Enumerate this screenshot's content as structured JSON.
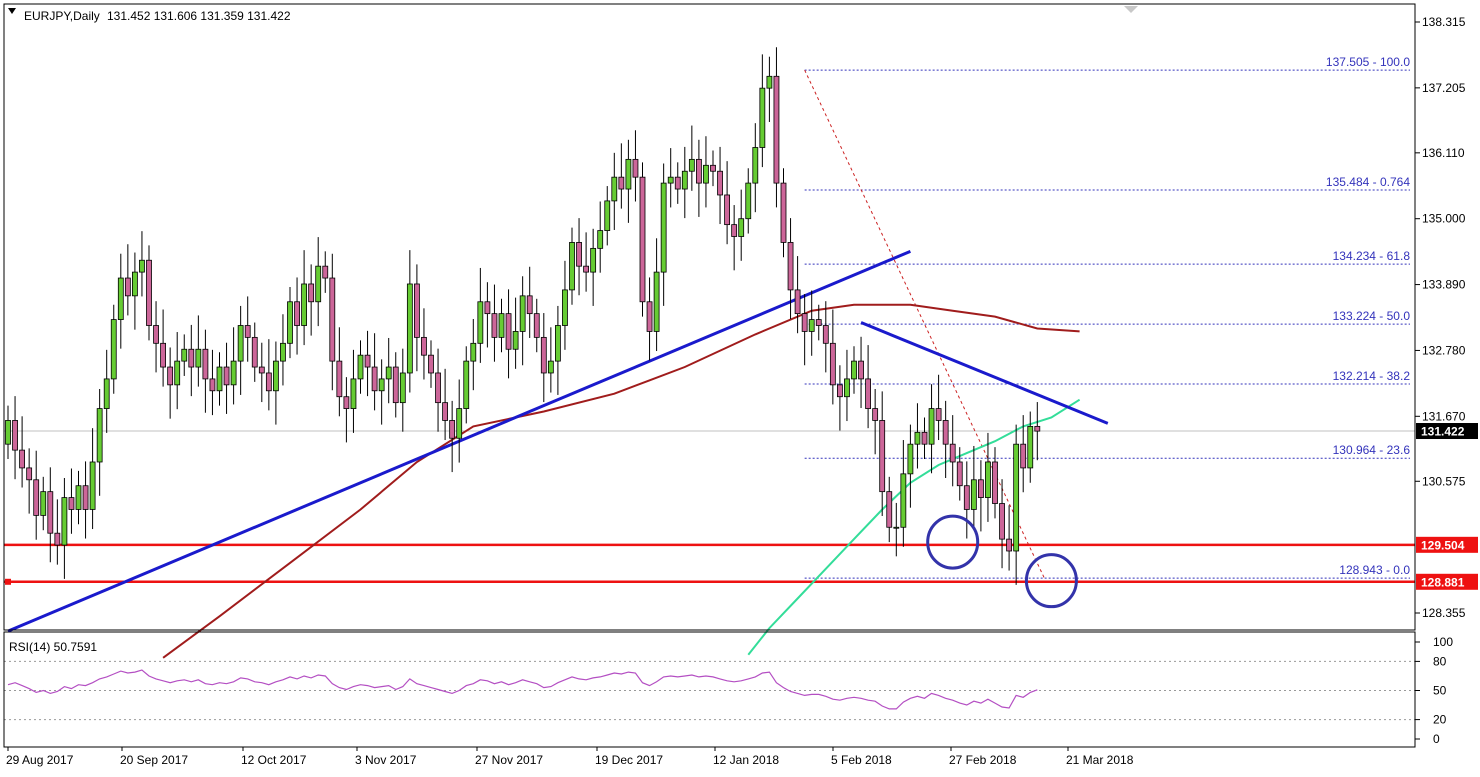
{
  "header": {
    "symbol": "EURJPY,Daily",
    "ohlc": "131.452 131.606 131.359 131.422"
  },
  "rsi": {
    "label": "RSI(14) 50.7591",
    "ticks": [
      100,
      80,
      50,
      20,
      0
    ],
    "levels": [
      80,
      50,
      20
    ],
    "color": "#b44fc3"
  },
  "colors": {
    "bull": "#66cc33",
    "bear": "#cc6699",
    "trendline": "#1a1acc",
    "sma100": "#a01c1c",
    "sma200": "#33dd99",
    "horizontal": "#ee1111",
    "fib": "#3333bb",
    "fib_diag": "#cc2222",
    "circle": "#3333aa"
  },
  "chart_data": [
    {
      "type": "candlestick",
      "title": "EURJPY,Daily",
      "ylim": [
        127.6,
        139.0
      ],
      "y_ticks": [
        138.315,
        137.205,
        136.11,
        135.0,
        133.89,
        132.78,
        131.67,
        130.575,
        128.355
      ],
      "price_tags": [
        {
          "value": 131.422,
          "label": "131.422",
          "style": "current"
        },
        {
          "value": 129.504,
          "label": "129.504",
          "style": "red"
        },
        {
          "value": 128.881,
          "label": "128.881",
          "style": "red"
        }
      ],
      "x_tick_labels": [
        "29 Aug 2017",
        "20 Sep 2017",
        "12 Oct 2017",
        "3 Nov 2017",
        "27 Nov 2017",
        "19 Dec 2017",
        "12 Jan 2018",
        "5 Feb 2018",
        "27 Feb 2018",
        "21 Mar 2018"
      ],
      "fib_levels": [
        {
          "value": 137.505,
          "label": "137.505 - 100.0"
        },
        {
          "value": 135.484,
          "label": "135.484 - 0.764"
        },
        {
          "value": 134.234,
          "label": "134.234 - 61.8"
        },
        {
          "value": 133.224,
          "label": "133.224 - 50.0"
        },
        {
          "value": 132.214,
          "label": "132.214 - 38.2"
        },
        {
          "value": 130.964,
          "label": "130.964 - 23.6"
        },
        {
          "value": 128.943,
          "label": "128.943 - 0.0"
        }
      ],
      "horizontal_lines": [
        129.504,
        128.881
      ],
      "closes": [
        131.6,
        131.1,
        130.8,
        130.6,
        130.0,
        130.4,
        129.7,
        129.5,
        130.3,
        130.1,
        130.5,
        130.1,
        130.9,
        131.8,
        132.3,
        133.3,
        134.0,
        133.7,
        134.1,
        134.3,
        133.2,
        132.9,
        132.5,
        132.2,
        132.6,
        132.8,
        132.5,
        132.8,
        132.3,
        132.1,
        132.5,
        132.2,
        132.6,
        133.2,
        133.0,
        132.5,
        132.4,
        132.1,
        132.6,
        132.9,
        133.6,
        133.2,
        133.9,
        133.6,
        134.2,
        134.0,
        132.6,
        132.0,
        131.8,
        132.3,
        132.7,
        132.5,
        132.1,
        132.3,
        132.5,
        131.9,
        132.4,
        133.9,
        133.0,
        132.7,
        132.4,
        131.9,
        131.6,
        131.3,
        131.8,
        132.6,
        132.9,
        133.6,
        133.4,
        133.0,
        133.4,
        132.8,
        133.1,
        133.7,
        133.4,
        133.0,
        132.4,
        132.6,
        133.2,
        133.8,
        134.6,
        134.2,
        134.1,
        134.5,
        134.8,
        135.3,
        135.7,
        135.5,
        136.0,
        135.7,
        133.6,
        133.1,
        134.1,
        135.6,
        135.7,
        135.5,
        135.8,
        136.0,
        135.6,
        135.9,
        135.8,
        135.4,
        134.9,
        134.7,
        135.0,
        135.6,
        136.2,
        137.2,
        137.4,
        135.6,
        134.6,
        133.8,
        133.4,
        133.1,
        133.3,
        133.2,
        132.9,
        132.2,
        132.0,
        132.3,
        132.6,
        132.3,
        131.8,
        131.6,
        130.4,
        129.8,
        129.8,
        130.7,
        131.2,
        131.4,
        131.2,
        131.8,
        131.6,
        131.2,
        130.9,
        130.5,
        130.1,
        130.6,
        130.3,
        130.9,
        130.2,
        129.6,
        129.4,
        131.2,
        130.8,
        131.5,
        131.42
      ],
      "sma200": [
        {
          "day": 105,
          "value": 127.65
        },
        {
          "day": 108,
          "value": 128.1
        },
        {
          "day": 112,
          "value": 128.6
        },
        {
          "day": 116,
          "value": 129.1
        },
        {
          "day": 120,
          "value": 129.6
        },
        {
          "day": 124,
          "value": 130.1
        },
        {
          "day": 128,
          "value": 130.55
        },
        {
          "day": 132,
          "value": 130.85
        },
        {
          "day": 136,
          "value": 131.05
        },
        {
          "day": 140,
          "value": 131.25
        },
        {
          "day": 144,
          "value": 131.5
        },
        {
          "day": 148,
          "value": 131.65
        },
        {
          "day": 152,
          "value": 131.95
        }
      ],
      "sma100": [
        {
          "day": 22,
          "value": 127.6
        },
        {
          "day": 30,
          "value": 128.3
        },
        {
          "day": 40,
          "value": 129.2
        },
        {
          "day": 50,
          "value": 130.1
        },
        {
          "day": 58,
          "value": 130.9
        },
        {
          "day": 66,
          "value": 131.5
        },
        {
          "day": 76,
          "value": 131.75
        },
        {
          "day": 86,
          "value": 132.05
        },
        {
          "day": 96,
          "value": 132.5
        },
        {
          "day": 106,
          "value": 133.05
        },
        {
          "day": 114,
          "value": 133.45
        },
        {
          "day": 120,
          "value": 133.55
        },
        {
          "day": 128,
          "value": 133.55
        },
        {
          "day": 134,
          "value": 133.45
        },
        {
          "day": 140,
          "value": 133.35
        },
        {
          "day": 146,
          "value": 133.15
        },
        {
          "day": 152,
          "value": 133.1
        }
      ],
      "trendlines": [
        {
          "from": {
            "day": 0,
            "value": 128.05
          },
          "to": {
            "day": 128,
            "value": 134.45
          }
        },
        {
          "from": {
            "day": 121,
            "value": 133.25
          },
          "to": {
            "day": 156,
            "value": 131.55
          }
        }
      ],
      "fib_diagonal": {
        "from": {
          "day": 113,
          "value": 137.505
        },
        "to": {
          "day": 147,
          "value": 128.943
        }
      },
      "circles": [
        {
          "day": 134,
          "value": 129.55
        },
        {
          "day": 148,
          "value": 128.9
        }
      ]
    },
    {
      "type": "line",
      "title": "RSI(14) 50.7591",
      "ylim": [
        0,
        100
      ],
      "series": [
        {
          "name": "RSI(14)",
          "values": [
            56,
            58,
            55,
            52,
            48,
            50,
            47,
            49,
            54,
            52,
            56,
            55,
            58,
            62,
            64,
            67,
            70,
            68,
            69,
            71,
            65,
            62,
            60,
            58,
            60,
            61,
            59,
            61,
            57,
            56,
            58,
            57,
            59,
            63,
            62,
            59,
            58,
            56,
            59,
            61,
            64,
            62,
            65,
            63,
            66,
            65,
            57,
            53,
            51,
            54,
            56,
            55,
            53,
            54,
            55,
            51,
            54,
            62,
            57,
            55,
            53,
            51,
            49,
            47,
            50,
            55,
            57,
            61,
            60,
            57,
            59,
            56,
            58,
            61,
            59,
            57,
            53,
            54,
            58,
            61,
            64,
            62,
            61,
            63,
            64,
            66,
            68,
            67,
            69,
            68,
            58,
            55,
            59,
            64,
            65,
            64,
            65,
            66,
            64,
            65,
            64,
            62,
            60,
            59,
            60,
            62,
            64,
            68,
            69,
            58,
            53,
            49,
            47,
            45,
            46,
            46,
            44,
            41,
            40,
            42,
            43,
            42,
            40,
            39,
            34,
            31,
            31,
            38,
            42,
            44,
            42,
            47,
            45,
            42,
            40,
            37,
            35,
            39,
            37,
            41,
            37,
            33,
            32,
            45,
            43,
            48,
            50.76
          ]
        }
      ]
    }
  ]
}
